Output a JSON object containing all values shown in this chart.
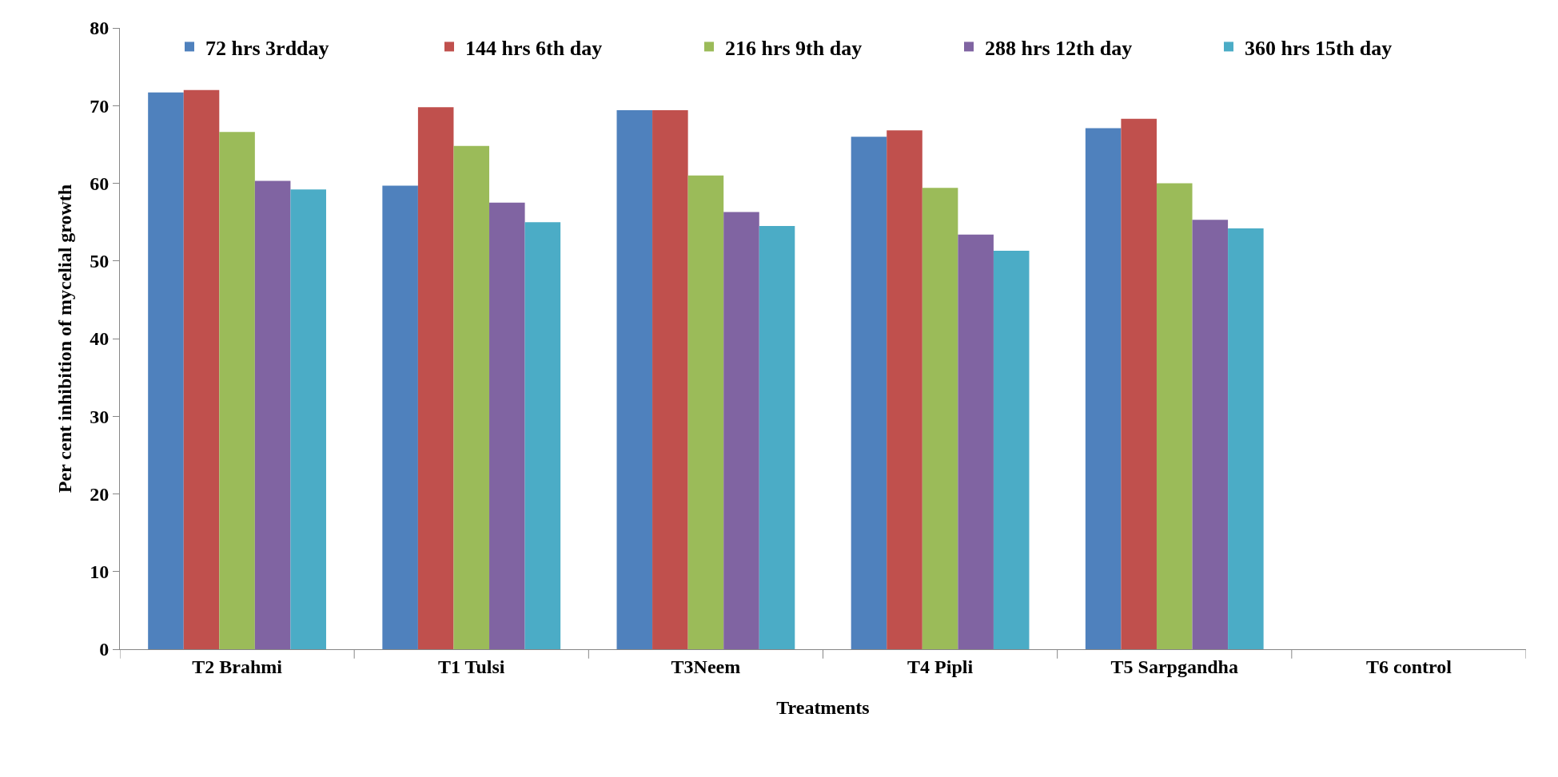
{
  "chart_data": {
    "type": "bar",
    "xlabel": "Treatments",
    "ylabel": "Per cent inhibition of mycelial growth",
    "categories": [
      "T2 Brahmi",
      "T1 Tulsi",
      "T3Neem",
      "T4 Pipli",
      "T5 Sarpgandha",
      "T6 control"
    ],
    "series": [
      {
        "name": "72 hrs 3rdday",
        "color": "#4f81bd",
        "values": [
          71.7,
          59.7,
          69.4,
          66.0,
          67.1,
          0
        ]
      },
      {
        "name": "144 hrs 6th day",
        "color": "#c0504d",
        "values": [
          72.0,
          69.8,
          69.4,
          66.8,
          68.3,
          0
        ]
      },
      {
        "name": "216 hrs 9th day",
        "color": "#9bbb59",
        "values": [
          66.6,
          64.8,
          61.0,
          59.4,
          60.0,
          0
        ]
      },
      {
        "name": "288 hrs 12th day",
        "color": "#8064a2",
        "values": [
          60.3,
          57.5,
          56.3,
          53.4,
          55.3,
          0
        ]
      },
      {
        "name": "360 hrs 15th day",
        "color": "#4bacc6",
        "values": [
          59.2,
          55.0,
          54.5,
          51.3,
          54.2,
          0
        ]
      }
    ],
    "ylim": [
      0,
      80
    ],
    "yticks": [
      0,
      10,
      20,
      30,
      40,
      50,
      60,
      70,
      80
    ],
    "grid": false,
    "legend": "top"
  }
}
